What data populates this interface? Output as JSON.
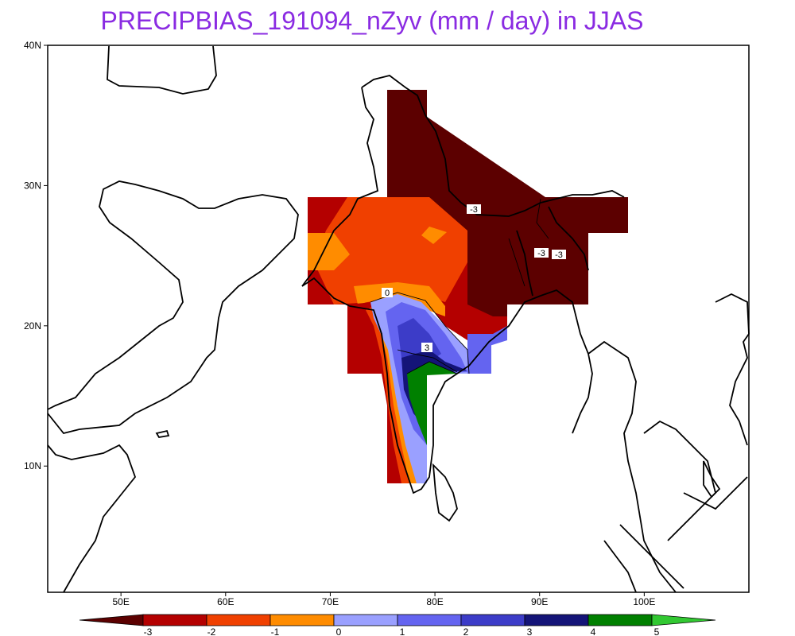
{
  "title": "PRECIPBIAS_191094_nZyv (mm / day) in JJAS",
  "map": {
    "lon_range": [
      43,
      110
    ],
    "lat_range": [
      1,
      40
    ],
    "lat_ticks": [
      {
        "value": 10,
        "label": "10N"
      },
      {
        "value": 20,
        "label": "20N"
      },
      {
        "value": 30,
        "label": "30N"
      },
      {
        "value": 40,
        "label": "40N"
      }
    ],
    "lon_ticks": [
      {
        "value": 50,
        "label": "50E"
      },
      {
        "value": 60,
        "label": "60E"
      },
      {
        "value": 70,
        "label": "70E"
      },
      {
        "value": 80,
        "label": "80E"
      },
      {
        "value": 90,
        "label": "90E"
      },
      {
        "value": 100,
        "label": "100E"
      }
    ],
    "contour_labels": [
      "0",
      "3",
      "-3",
      "-3",
      "-3"
    ]
  },
  "colorbar": {
    "labels": [
      "-3",
      "-2",
      "-1",
      "0",
      "1",
      "2",
      "3",
      "4",
      "5"
    ],
    "colors": [
      "#5c0000",
      "#b40000",
      "#f04000",
      "#ff8c00",
      "#9aa0ff",
      "#6464f0",
      "#3c3cc8",
      "#141478",
      "#008000",
      "#32c832"
    ]
  }
}
